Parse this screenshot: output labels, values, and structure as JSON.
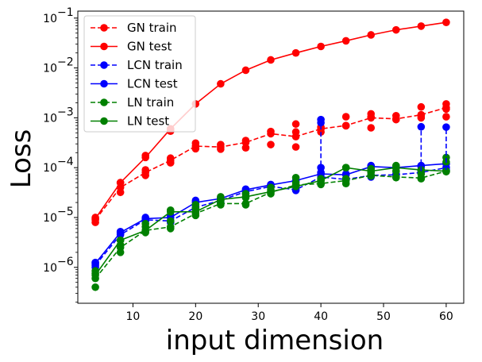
{
  "chart_data": {
    "type": "line",
    "title": "",
    "xlabel": "input dimension",
    "ylabel": "Loss",
    "yscale": "log",
    "xlim": [
      1.2,
      62.8
    ],
    "ylim_exp": [
      -6.72,
      -0.86
    ],
    "xticks": [
      10,
      20,
      30,
      40,
      50,
      60
    ],
    "yticks": [
      {
        "exp": -6,
        "label": "10",
        "sup": "−6"
      },
      {
        "exp": -5,
        "label": "10",
        "sup": "−5"
      },
      {
        "exp": -4,
        "label": "10",
        "sup": "−4"
      },
      {
        "exp": -3,
        "label": "10",
        "sup": "−3"
      },
      {
        "exp": -2,
        "label": "10",
        "sup": "−2"
      },
      {
        "exp": -1,
        "label": "10",
        "sup": "−1"
      }
    ],
    "legend_position": "top-left",
    "series": [
      {
        "name": "GN train",
        "color": "#ff0000",
        "style": "dashed",
        "x": [
          4,
          8,
          12,
          16,
          20,
          24,
          28,
          32,
          36,
          40,
          44,
          48,
          52,
          56,
          60
        ],
        "y": [
          9e-06,
          4e-05,
          8e-05,
          0.00014,
          0.00027,
          0.00026,
          0.00032,
          0.00048,
          0.00042,
          0.0006,
          0.0007,
          0.001,
          0.00095,
          0.00115,
          0.0016
        ],
        "scatter": [
          [
            4,
            8e-06
          ],
          [
            4,
            1e-05
          ],
          [
            8,
            3.2e-05
          ],
          [
            8,
            5e-05
          ],
          [
            12,
            7e-05
          ],
          [
            12,
            9e-05
          ],
          [
            16,
            0.000125
          ],
          [
            16,
            0.000155
          ],
          [
            20,
            0.00024
          ],
          [
            20,
            0.00031
          ],
          [
            24,
            0.000235
          ],
          [
            24,
            0.00029
          ],
          [
            28,
            0.00025
          ],
          [
            28,
            0.00035
          ],
          [
            32,
            0.00029
          ],
          [
            32,
            0.00053
          ],
          [
            36,
            0.00026
          ],
          [
            36,
            0.00052
          ],
          [
            36,
            0.00075
          ],
          [
            40,
            0.00052
          ],
          [
            40,
            0.00065
          ],
          [
            44,
            0.00069
          ],
          [
            44,
            0.00105
          ],
          [
            48,
            0.00063
          ],
          [
            48,
            0.00105
          ],
          [
            48,
            0.0012
          ],
          [
            52,
            0.00092
          ],
          [
            52,
            0.0011
          ],
          [
            56,
            0.001
          ],
          [
            56,
            0.0011
          ],
          [
            56,
            0.00165
          ],
          [
            60,
            0.00105
          ],
          [
            60,
            0.0015
          ],
          [
            60,
            0.0019
          ]
        ]
      },
      {
        "name": "GN test",
        "color": "#ff0000",
        "style": "solid",
        "x": [
          4,
          8,
          12,
          16,
          20,
          24,
          28,
          32,
          36,
          40,
          44,
          48,
          52,
          56,
          60
        ],
        "y": [
          9.5e-06,
          5e-05,
          0.00016,
          0.0006,
          0.0019,
          0.0048,
          0.009,
          0.0145,
          0.02,
          0.027,
          0.035,
          0.046,
          0.058,
          0.069,
          0.082
        ],
        "scatter": [
          [
            12,
            0.000175
          ],
          [
            16,
            0.00054
          ]
        ]
      },
      {
        "name": "LCN train",
        "color": "#0000ff",
        "style": "dashed",
        "x": [
          4,
          8,
          12,
          16,
          20,
          24,
          28,
          32,
          36,
          40,
          44,
          48,
          52,
          56,
          60
        ],
        "y": [
          1.1e-06,
          4.5e-06,
          9e-06,
          8.5e-06,
          1.6e-05,
          2.2e-05,
          3.3e-05,
          4.2e-05,
          3.6e-05,
          6.5e-05,
          5.8e-05,
          7e-05,
          7.2e-05,
          8e-05,
          0.0001
        ],
        "scatter": [
          [
            4,
            1e-06
          ],
          [
            4,
            1.25e-06
          ],
          [
            8,
            4.8e-06
          ],
          [
            8,
            5.2e-06
          ],
          [
            12,
            8.5e-06
          ],
          [
            12,
            1e-05
          ],
          [
            16,
            8e-06
          ],
          [
            16,
            1.1e-05
          ],
          [
            20,
            1.5e-05
          ],
          [
            20,
            2.2e-05
          ],
          [
            24,
            2e-05
          ],
          [
            24,
            2.4e-05
          ],
          [
            28,
            3e-05
          ],
          [
            28,
            3.7e-05
          ],
          [
            32,
            4.3e-05
          ],
          [
            32,
            4.6e-05
          ],
          [
            36,
            3.5e-05
          ],
          [
            36,
            5.5e-05
          ],
          [
            40,
            8e-05
          ],
          [
            40,
            0.0001
          ],
          [
            40,
            0.00092
          ],
          [
            40,
            0.0008
          ],
          [
            44,
            6e-05
          ],
          [
            44,
            7.5e-05
          ],
          [
            48,
            6.5e-05
          ],
          [
            48,
            0.00011
          ],
          [
            52,
            7.5e-05
          ],
          [
            52,
            0.0001
          ],
          [
            56,
            8.5e-05
          ],
          [
            56,
            0.000105
          ],
          [
            56,
            0.00066
          ],
          [
            60,
            9e-05
          ],
          [
            60,
            0.00012
          ],
          [
            60,
            0.00065
          ]
        ]
      },
      {
        "name": "LCN test",
        "color": "#0000ff",
        "style": "solid",
        "x": [
          4,
          8,
          12,
          16,
          20,
          24,
          28,
          32,
          36,
          40,
          44,
          48,
          52,
          56,
          60
        ],
        "y": [
          1.2e-06,
          5e-06,
          9.5e-06,
          1e-05,
          2e-05,
          2.4e-05,
          3.6e-05,
          4.5e-05,
          5.5e-05,
          7.5e-05,
          7.2e-05,
          0.000105,
          0.0001,
          0.00011,
          0.00012
        ],
        "scatter": []
      },
      {
        "name": "LN train",
        "color": "#008000",
        "style": "dashed",
        "x": [
          4,
          8,
          12,
          16,
          20,
          24,
          28,
          32,
          36,
          40,
          44,
          48,
          52,
          56,
          60
        ],
        "y": [
          6e-07,
          2.5e-06,
          5.5e-06,
          6.5e-06,
          1.2e-05,
          1.9e-05,
          1.9e-05,
          3.2e-05,
          4.5e-05,
          4.8e-05,
          5.5e-05,
          7e-05,
          6.5e-05,
          6.2e-05,
          8.5e-05
        ],
        "scatter": [
          [
            4,
            4e-07
          ],
          [
            4,
            7.5e-07
          ],
          [
            4,
            8.5e-07
          ],
          [
            8,
            2e-06
          ],
          [
            8,
            2.8e-06
          ],
          [
            8,
            3.5e-06
          ],
          [
            12,
            5e-06
          ],
          [
            12,
            6.5e-06
          ],
          [
            12,
            7.5e-06
          ],
          [
            16,
            6e-06
          ],
          [
            16,
            8.5e-06
          ],
          [
            16,
            1.4e-05
          ],
          [
            20,
            1.1e-05
          ],
          [
            20,
            1.5e-05
          ],
          [
            20,
            1.8e-05
          ],
          [
            24,
            1.8e-05
          ],
          [
            24,
            2.2e-05
          ],
          [
            24,
            2.6e-05
          ],
          [
            28,
            1.8e-05
          ],
          [
            28,
            2.5e-05
          ],
          [
            28,
            3e-05
          ],
          [
            32,
            3e-05
          ],
          [
            32,
            3.6e-05
          ],
          [
            32,
            4e-05
          ],
          [
            36,
            4.3e-05
          ],
          [
            36,
            5e-05
          ],
          [
            36,
            6.3e-05
          ],
          [
            40,
            4.6e-05
          ],
          [
            40,
            5.5e-05
          ],
          [
            40,
            6e-05
          ],
          [
            44,
            4.8e-05
          ],
          [
            44,
            6e-05
          ],
          [
            44,
            0.0001
          ],
          [
            48,
            6.8e-05
          ],
          [
            48,
            8e-05
          ],
          [
            48,
            9.5e-05
          ],
          [
            52,
            6.3e-05
          ],
          [
            52,
            8.5e-05
          ],
          [
            52,
            0.00011
          ],
          [
            56,
            6e-05
          ],
          [
            56,
            7.5e-05
          ],
          [
            56,
            8.8e-05
          ],
          [
            60,
            8.3e-05
          ],
          [
            60,
            0.00013
          ],
          [
            60,
            0.00016
          ]
        ]
      },
      {
        "name": "LN test",
        "color": "#008000",
        "style": "solid",
        "x": [
          4,
          8,
          12,
          16,
          20,
          24,
          28,
          32,
          36,
          40,
          44,
          48,
          52,
          56,
          60
        ],
        "y": [
          7e-07,
          3.5e-06,
          5.5e-06,
          1.3e-05,
          1.3e-05,
          2.3e-05,
          2.6e-05,
          3.3e-05,
          4.2e-05,
          5.5e-05,
          0.0001,
          8.5e-05,
          0.0001,
          9e-05,
          8.5e-05
        ],
        "scatter": []
      }
    ]
  }
}
